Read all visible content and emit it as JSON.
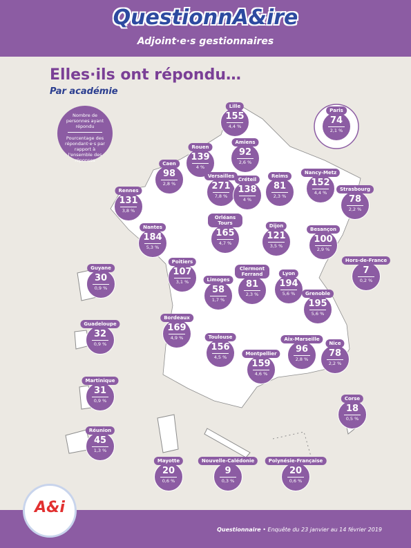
{
  "header": {
    "logo": "QuestionnA&ire",
    "subtitle": "Adjoint·e·s gestionnaires"
  },
  "title": "Elles·ils ont répondu…",
  "subtitle": "Par académie",
  "legend": {
    "count": "Nombre de personnes ayant répondu",
    "share": "Pourcentage des répondant·e·s par rapport à l'ensemble des réponses"
  },
  "academies": [
    {
      "name": "Lille",
      "count": 155,
      "share": "4,4 %"
    },
    {
      "name": "Paris",
      "count": 74,
      "share": "2,1 %"
    },
    {
      "name": "Amiens",
      "count": 92,
      "share": "2,6 %"
    },
    {
      "name": "Rouen",
      "count": 139,
      "share": "4 %"
    },
    {
      "name": "Caen",
      "count": 98,
      "share": "2,8 %"
    },
    {
      "name": "Versailles",
      "count": 271,
      "share": "7,8 %"
    },
    {
      "name": "Créteil",
      "count": 138,
      "share": "4 %"
    },
    {
      "name": "Reims",
      "count": 81,
      "share": "2,3 %"
    },
    {
      "name": "Nancy-Metz",
      "count": 152,
      "share": "4,4 %"
    },
    {
      "name": "Strasbourg",
      "count": 78,
      "share": "2,2 %"
    },
    {
      "name": "Rennes",
      "count": 131,
      "share": "3,8 %"
    },
    {
      "name": "Nantes",
      "count": 184,
      "share": "5,3 %"
    },
    {
      "name": "Orléans Tours",
      "count": 165,
      "share": "4,7 %"
    },
    {
      "name": "Dijon",
      "count": 121,
      "share": "3,5 %"
    },
    {
      "name": "Besançon",
      "count": 100,
      "share": "2,9 %"
    },
    {
      "name": "Hors-de-France",
      "count": 7,
      "share": "0,2 %"
    },
    {
      "name": "Guyane",
      "count": 30,
      "share": "0,9 %"
    },
    {
      "name": "Poitiers",
      "count": 107,
      "share": "3,1 %"
    },
    {
      "name": "Limoges",
      "count": 58,
      "share": "1,7 %"
    },
    {
      "name": "Clermont Ferrand",
      "count": 81,
      "share": "2,3 %"
    },
    {
      "name": "Lyon",
      "count": 194,
      "share": "5,6 %"
    },
    {
      "name": "Grenoble",
      "count": 195,
      "share": "5,6 %"
    },
    {
      "name": "Guadeloupe",
      "count": 32,
      "share": "0,9 %"
    },
    {
      "name": "Bordeaux",
      "count": 169,
      "share": "4,9 %"
    },
    {
      "name": "Toulouse",
      "count": 156,
      "share": "4,5 %"
    },
    {
      "name": "Aix-Marseille",
      "count": 96,
      "share": "2,8 %"
    },
    {
      "name": "Nice",
      "count": 78,
      "share": "2,2 %"
    },
    {
      "name": "Montpellier",
      "count": 159,
      "share": "4,6 %"
    },
    {
      "name": "Martinique",
      "count": 31,
      "share": "0,9 %"
    },
    {
      "name": "Corse",
      "count": 18,
      "share": "0,5 %"
    },
    {
      "name": "Réunion",
      "count": 45,
      "share": "1,3 %"
    },
    {
      "name": "Mayotte",
      "count": 20,
      "share": "0,6 %"
    },
    {
      "name": "Nouvelle-Calédonie",
      "count": 9,
      "share": "0,3 %"
    },
    {
      "name": "Polynésie-Française",
      "count": 20,
      "share": "0,6 %"
    }
  ],
  "footer": {
    "logo": "A&i",
    "source": "Questionnaire",
    "dates": "• Enquête du 23 janvier au 14 février 2019"
  }
}
